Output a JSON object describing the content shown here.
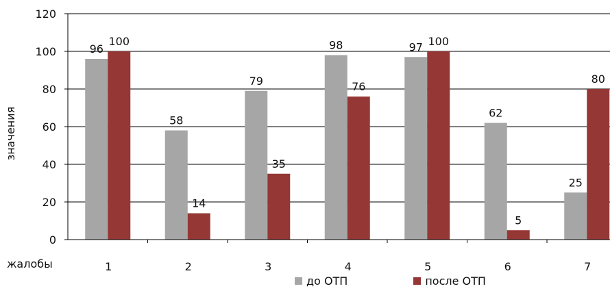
{
  "chart_data": {
    "type": "bar",
    "xlabel": "жалобы",
    "ylabel": "значения",
    "categories": [
      "1",
      "2",
      "3",
      "4",
      "5",
      "6",
      "7"
    ],
    "ylim": [
      0,
      120
    ],
    "yticks": [
      0,
      20,
      40,
      60,
      80,
      100,
      120
    ],
    "grid": true,
    "legend_position": "bottom",
    "series": [
      {
        "name": "до ОТП",
        "color": "#a6a6a6",
        "values": [
          96,
          58,
          79,
          98,
          97,
          62,
          25
        ]
      },
      {
        "name": "после ОТП",
        "color": "#953735",
        "values": [
          100,
          14,
          35,
          76,
          100,
          5,
          80
        ]
      }
    ]
  }
}
